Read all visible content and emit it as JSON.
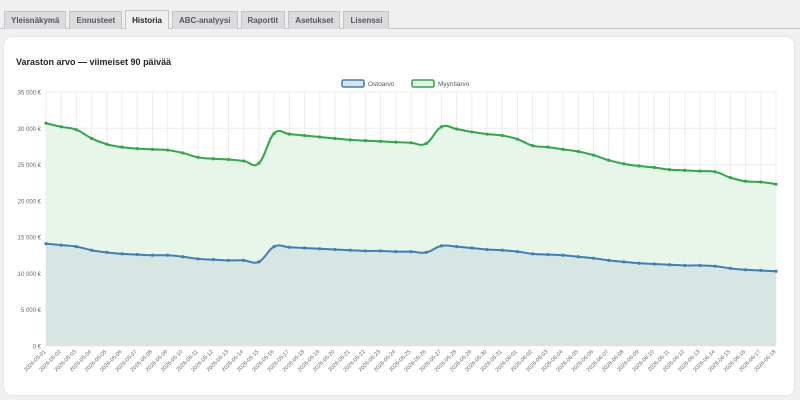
{
  "tabs": [
    {
      "label": "Yleisnäkymä",
      "active": false
    },
    {
      "label": "Ennusteet",
      "active": false
    },
    {
      "label": "Historia",
      "active": true
    },
    {
      "label": "ABC-analyysi",
      "active": false
    },
    {
      "label": "Raportit",
      "active": false
    },
    {
      "label": "Asetukset",
      "active": false
    },
    {
      "label": "Lisenssi",
      "active": false
    }
  ],
  "card": {
    "title": "Varaston arvo — viimeiset 90 päivää"
  },
  "colors": {
    "purchase_line": "#3f7fb6",
    "purchase_fill": "#d6e4e2",
    "sales_line": "#2ea84a",
    "sales_fill": "#e6f4e7",
    "grid": "#ececec",
    "tick": "#666666"
  },
  "chart_data": {
    "type": "area",
    "title": "",
    "xlabel": "",
    "ylabel": "",
    "ylim": [
      0,
      35000
    ],
    "y_ticks": [
      "0 €",
      "5 000 €",
      "10 000 €",
      "15 000 €",
      "20 000 €",
      "25 000 €",
      "30 000 €",
      "35 000 €"
    ],
    "legend_position": "top",
    "grid": true,
    "x": [
      "2026-05-01",
      "2026-05-02",
      "2026-05-03",
      "2026-05-04",
      "2026-05-05",
      "2026-05-06",
      "2026-05-07",
      "2026-05-08",
      "2026-05-09",
      "2026-05-10",
      "2026-05-11",
      "2026-05-12",
      "2026-05-13",
      "2026-05-14",
      "2026-05-15",
      "2026-05-16",
      "2026-05-17",
      "2026-05-18",
      "2026-05-19",
      "2026-05-20",
      "2026-05-21",
      "2026-05-22",
      "2026-05-23",
      "2026-05-24",
      "2026-05-25",
      "2026-05-26",
      "2026-05-27",
      "2026-05-28",
      "2026-05-29",
      "2026-05-30",
      "2026-05-31",
      "2026-06-01",
      "2026-06-02",
      "2026-06-03",
      "2026-06-04",
      "2026-06-05",
      "2026-06-06",
      "2026-06-07",
      "2026-06-08",
      "2026-06-09",
      "2026-06-10",
      "2026-06-11",
      "2026-06-12",
      "2026-06-13",
      "2026-06-14",
      "2026-06-15",
      "2026-06-16",
      "2026-06-17",
      "2026-06-18"
    ],
    "series": [
      {
        "name": "Ostoarvo",
        "values": [
          14100,
          13900,
          13700,
          13200,
          12900,
          12700,
          12600,
          12500,
          12500,
          12300,
          12000,
          11900,
          11800,
          11800,
          11600,
          13700,
          13600,
          13500,
          13400,
          13300,
          13200,
          13100,
          13100,
          13000,
          13000,
          12900,
          13800,
          13700,
          13500,
          13300,
          13200,
          13000,
          12700,
          12600,
          12500,
          12300,
          12100,
          11800,
          11600,
          11400,
          11300,
          11200,
          11100,
          11100,
          11000,
          10700,
          10500,
          10400,
          10300
        ]
      },
      {
        "name": "Myyntiarvo",
        "values": [
          30700,
          30200,
          29800,
          28600,
          27800,
          27400,
          27200,
          27100,
          27000,
          26600,
          26000,
          25800,
          25700,
          25500,
          25200,
          29300,
          29200,
          29000,
          28800,
          28600,
          28400,
          28300,
          28200,
          28100,
          28000,
          27900,
          30200,
          29900,
          29500,
          29200,
          29000,
          28500,
          27600,
          27400,
          27100,
          26800,
          26300,
          25600,
          25100,
          24800,
          24600,
          24300,
          24200,
          24100,
          24000,
          23200,
          22700,
          22600,
          22300
        ]
      }
    ]
  }
}
